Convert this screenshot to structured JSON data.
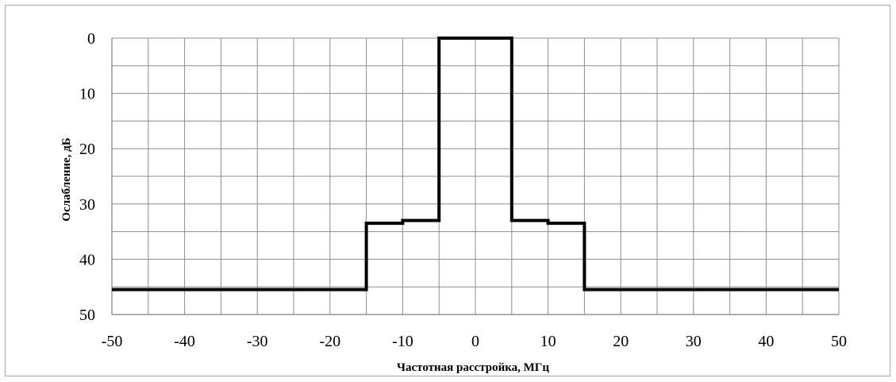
{
  "chart_data": {
    "type": "line",
    "title": "",
    "xlabel": "Частотная расстройка, МГц",
    "ylabel": "Ослабление, дБ",
    "xlim": [
      -50,
      50
    ],
    "ylim": [
      0,
      50
    ],
    "y_inverted": true,
    "x_ticks": [
      "-50",
      "-40",
      "-30",
      "-20",
      "-10",
      "0",
      "10",
      "20",
      "30",
      "40",
      "50"
    ],
    "y_ticks": [
      "0",
      "10",
      "20",
      "30",
      "40",
      "50"
    ],
    "x_minor_step": 5,
    "y_minor_step": 5,
    "grid": true,
    "series": [
      {
        "color": "#000000",
        "x": [
          -50,
          -15,
          -15,
          -10,
          -10,
          -5,
          -5,
          5,
          5,
          10,
          10,
          15,
          15,
          50
        ],
        "y": [
          45.5,
          45.5,
          33.5,
          33.5,
          33,
          33,
          0,
          0,
          33,
          33,
          33.5,
          33.5,
          45.5,
          45.5
        ]
      }
    ]
  }
}
